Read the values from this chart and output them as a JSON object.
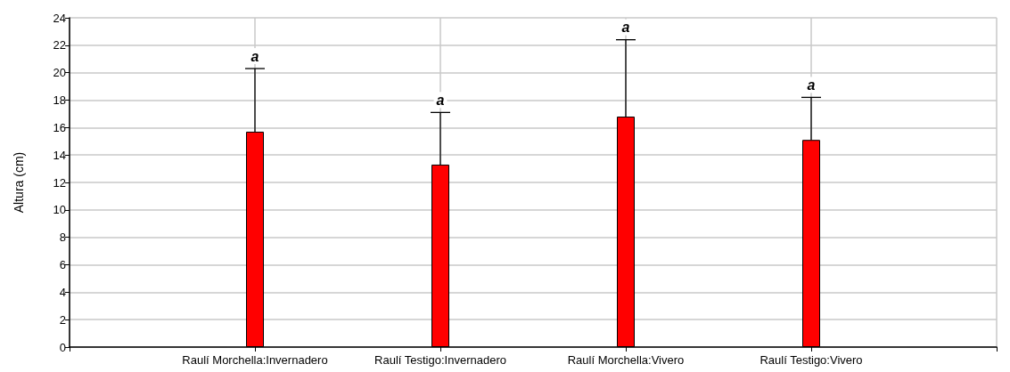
{
  "chart_data": {
    "type": "bar",
    "ylabel": "Altura (cm)",
    "categories": [
      null,
      "Raulí Morchella:Invernadero",
      "Raulí Testigo:Invernadero",
      "Raulí Morchella:Vivero",
      "Raulí Testigo:Vivero",
      null
    ],
    "values": [
      null,
      15.7,
      13.3,
      16.8,
      15.1,
      null
    ],
    "errors": [
      null,
      [
        15.7,
        20.3
      ],
      [
        13.3,
        17.1
      ],
      [
        16.8,
        22.4
      ],
      [
        15.1,
        18.2
      ],
      null
    ],
    "color": "#ff0000",
    "ylim": [
      0,
      24
    ],
    "yticks": [
      0,
      2,
      4,
      6,
      8,
      10,
      12,
      14,
      16,
      18,
      20,
      22,
      24
    ],
    "grid": true,
    "annotations": [
      "a",
      "a",
      "a",
      "a"
    ]
  }
}
